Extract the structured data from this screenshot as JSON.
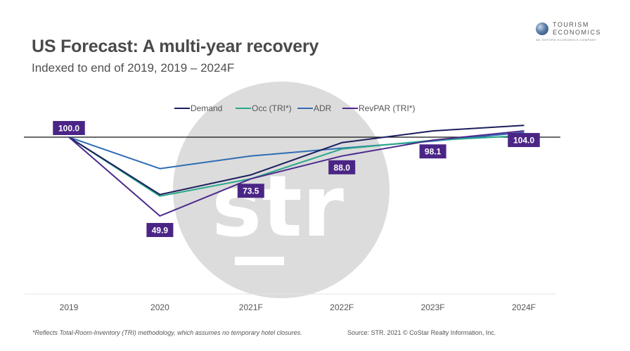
{
  "header": {
    "title": "US Forecast: A multi-year recovery",
    "subtitle": "Indexed to end of 2019, 2019 – 2024F"
  },
  "logo": {
    "line1": "TOURISM",
    "line2": "ECONOMICS",
    "line3": "AN OXFORD ECONOMICS COMPANY",
    "icon": "globe-icon"
  },
  "watermark": {
    "text": "str"
  },
  "footer": {
    "note": "*Reflects Total-Room-Inventory (TRI) methodology, which assumes no temporary hotel closures.",
    "source": "Source: STR. 2021 © CoStar Realty Information, Inc."
  },
  "chart_data": {
    "type": "line",
    "title": "US Forecast: A multi-year recovery",
    "subtitle": "Indexed to end of 2019, 2019 – 2024F",
    "xlabel": "",
    "ylabel": "",
    "categories": [
      "2019",
      "2020",
      "2021F",
      "2022F",
      "2023F",
      "2024F"
    ],
    "reference_line": 100,
    "ylim": [
      0,
      110
    ],
    "grid": false,
    "legend": {
      "position": "top-center"
    },
    "series": [
      {
        "name": "Demand",
        "color": "#1b1f5e",
        "values": [
          100,
          63.5,
          76.0,
          96.5,
          104.0,
          107.5
        ]
      },
      {
        "name": "Occ (TRI*)",
        "color": "#2aa889",
        "values": [
          100,
          62.5,
          73.5,
          92.5,
          98.0,
          101.0
        ]
      },
      {
        "name": "ADR",
        "color": "#2f6db5",
        "values": [
          100,
          80.0,
          88.0,
          93.0,
          97.5,
          103.0
        ]
      },
      {
        "name": "RevPAR (TRI*)",
        "color": "#4b2a8c",
        "values": [
          100,
          49.9,
          73.5,
          88.0,
          98.1,
          104.0
        ]
      }
    ],
    "data_labels": {
      "series": "RevPAR (TRI*)",
      "background": "#4b2586",
      "labels": [
        "100.0",
        "49.9",
        "73.5",
        "88.0",
        "98.1",
        "104.0"
      ]
    }
  }
}
